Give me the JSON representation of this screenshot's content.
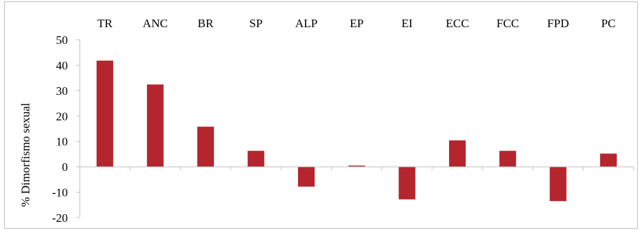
{
  "chart_data": {
    "type": "bar",
    "categories": [
      "TR",
      "ANC",
      "BR",
      "SP",
      "ALP",
      "EP",
      "EI",
      "ECC",
      "FCC",
      "FPD",
      "PC"
    ],
    "values": [
      41.8,
      32.4,
      15.8,
      6.3,
      -7.8,
      0.5,
      -12.8,
      10.4,
      6.3,
      -13.5,
      5.2
    ],
    "ylabel": "% Dimorfismo sexual",
    "ylim": [
      -20,
      50
    ],
    "yticks": [
      50,
      40,
      30,
      20,
      10,
      0,
      -10,
      -20
    ],
    "category_axis_position": "top",
    "grid": false,
    "legend": "none",
    "bar_color": "#b5252e",
    "axis_color": "#bfbfbf"
  }
}
